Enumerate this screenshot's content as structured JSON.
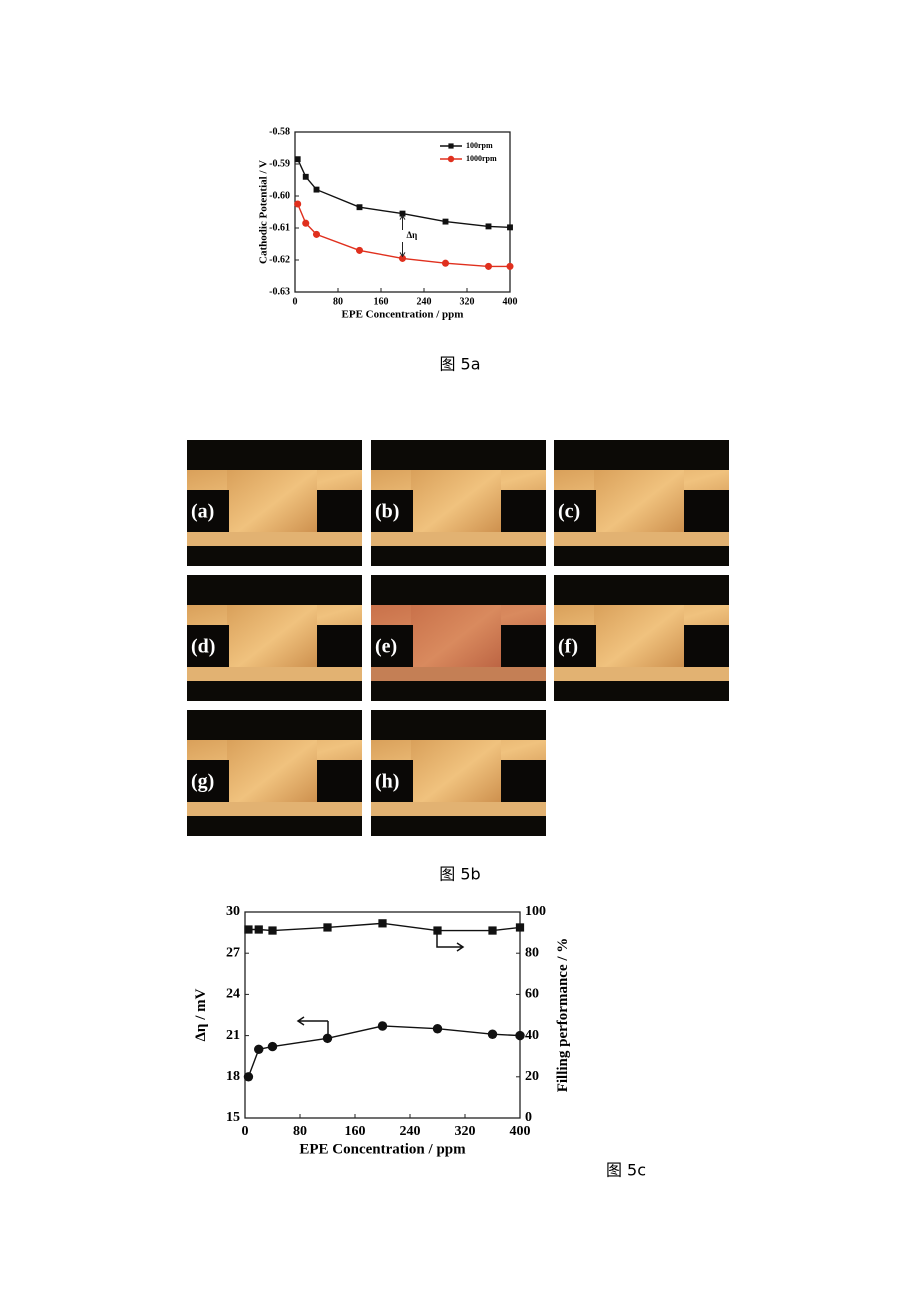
{
  "chart_data": [
    {
      "type": "line",
      "caption": "图 5a",
      "x_label": "EPE Concentration / ppm",
      "y_label": "Cathodic Potential / V",
      "x": [
        5,
        20,
        40,
        120,
        200,
        280,
        360,
        400
      ],
      "series": [
        {
          "name": "100rpm",
          "color": "#111111",
          "marker": "square",
          "values": [
            -0.5885,
            -0.594,
            -0.598,
            -0.6035,
            -0.6055,
            -0.608,
            -0.6095,
            -0.6098
          ]
        },
        {
          "name": "1000rpm",
          "color": "#e0301e",
          "marker": "circle",
          "values": [
            -0.6025,
            -0.6085,
            -0.612,
            -0.617,
            -0.6195,
            -0.621,
            -0.622,
            -0.622
          ]
        }
      ],
      "annotation": "Δη",
      "xlim": [
        0,
        400
      ],
      "xticks": [
        0,
        80,
        160,
        240,
        320,
        400
      ],
      "ylim": [
        -0.63,
        -0.58
      ],
      "yticks": [
        -0.63,
        -0.62,
        -0.61,
        {
          "value": -0.6,
          "label": "-0.60"
        },
        -0.59,
        -0.58
      ],
      "legend": "upper right"
    },
    {
      "type": "line",
      "caption": "图 5c",
      "x_label": "EPE Concentration / ppm",
      "y_label": "Δη / mV",
      "y2_label": "Filling performance / %",
      "x": [
        5,
        20,
        40,
        120,
        200,
        280,
        360,
        400
      ],
      "series": [
        {
          "color": "#111111",
          "marker": "circle",
          "values": [
            18,
            20,
            20.2,
            20.8,
            21.7,
            21.5,
            21.1,
            21.0
          ]
        },
        {
          "color": "#111111",
          "marker": "square",
          "axis": "y2",
          "values": [
            91.5,
            91.5,
            91,
            92.5,
            94.5,
            91,
            91,
            92.5
          ]
        }
      ],
      "xlim": [
        0,
        400
      ],
      "xticks": [
        0,
        80,
        160,
        240,
        320,
        400
      ],
      "ylim": [
        15,
        30
      ],
      "yticks": [
        15,
        18,
        21,
        24,
        27,
        30
      ],
      "y2lim": [
        0,
        100
      ],
      "y2ticks": [
        0,
        20,
        40,
        60,
        80,
        100
      ]
    }
  ],
  "figure_5b": {
    "panels": [
      "(a)",
      "(b)",
      "(c)",
      "(d)",
      "(e)",
      "(f)",
      "(g)",
      "(h)"
    ],
    "caption": "图 5b"
  }
}
